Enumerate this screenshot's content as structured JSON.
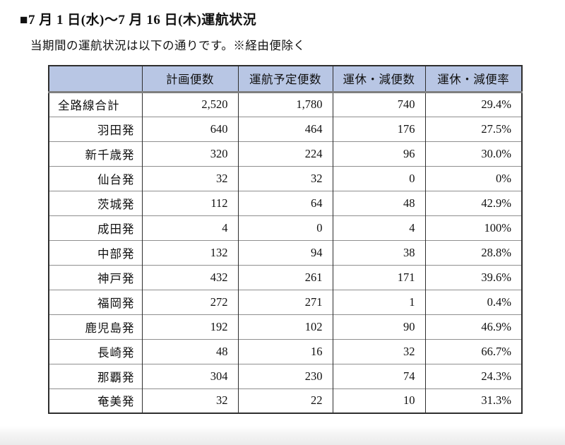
{
  "page": {
    "title": "■7 月 1 日(水)～7 月 16 日(木)運航状況",
    "subtitle": "当期間の運航状況は以下の通りです。※経由便除く"
  },
  "table": {
    "columns": [
      "",
      "計画便数",
      "運航予定便数",
      "運休・減便数",
      "運休・減便率"
    ],
    "rows": [
      {
        "label": "全路線合計",
        "values": [
          "2,520",
          "1,780",
          "740",
          "29.4%"
        ]
      },
      {
        "label": "羽田発",
        "values": [
          "640",
          "464",
          "176",
          "27.5%"
        ]
      },
      {
        "label": "新千歳発",
        "values": [
          "320",
          "224",
          "96",
          "30.0%"
        ]
      },
      {
        "label": "仙台発",
        "values": [
          "32",
          "32",
          "0",
          "0%"
        ]
      },
      {
        "label": "茨城発",
        "values": [
          "112",
          "64",
          "48",
          "42.9%"
        ]
      },
      {
        "label": "成田発",
        "values": [
          "4",
          "0",
          "4",
          "100%"
        ]
      },
      {
        "label": "中部発",
        "values": [
          "132",
          "94",
          "38",
          "28.8%"
        ]
      },
      {
        "label": "神戸発",
        "values": [
          "432",
          "261",
          "171",
          "39.6%"
        ]
      },
      {
        "label": "福岡発",
        "values": [
          "272",
          "271",
          "1",
          "0.4%"
        ]
      },
      {
        "label": "鹿児島発",
        "values": [
          "192",
          "102",
          "90",
          "46.9%"
        ]
      },
      {
        "label": "長崎発",
        "values": [
          "48",
          "16",
          "32",
          "66.7%"
        ]
      },
      {
        "label": "那覇発",
        "values": [
          "304",
          "230",
          "74",
          "24.3%"
        ]
      },
      {
        "label": "奄美発",
        "values": [
          "32",
          "22",
          "10",
          "31.3%"
        ]
      }
    ],
    "colors": {
      "header_bg": "#b8c6e4",
      "border_dark": "#2e2e2e",
      "border_gray": "#8f8f8f",
      "header_separator": "#7f7f7f",
      "text": "#111111"
    }
  }
}
